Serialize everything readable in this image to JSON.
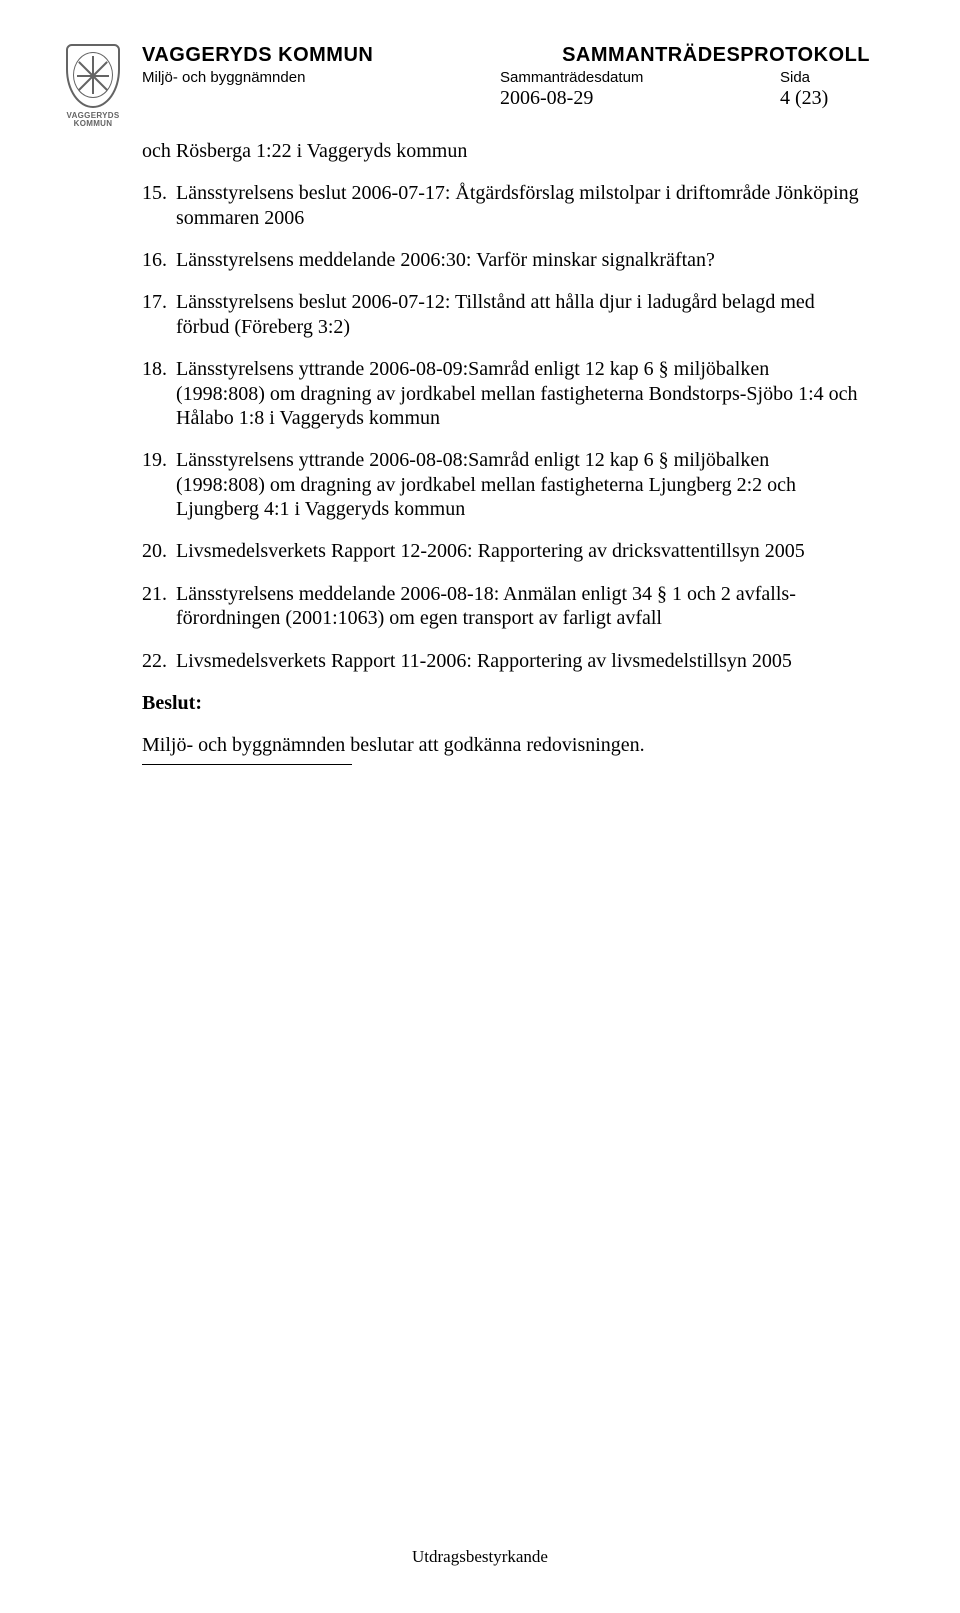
{
  "header": {
    "org": "VAGGERYDS KOMMUN",
    "doc_type": "SAMMANTRÄDESPROTOKOLL",
    "board": "Miljö- och byggnämnden",
    "date_label": "Sammanträdesdatum",
    "side_label": "Sida",
    "date": "2006-08-29",
    "page": "4 (23)",
    "crest_label_1": "VAGGERYDS",
    "crest_label_2": "KOMMUN"
  },
  "intro": "och Rösberga 1:22 i Vaggeryds kommun",
  "items": [
    {
      "n": "15.",
      "t": "Länsstyrelsens beslut 2006-07-17: Åtgärdsförslag milstolpar i driftområde Jönköping sommaren 2006"
    },
    {
      "n": "16.",
      "t": "Länsstyrelsens meddelande 2006:30: Varför minskar signalkräftan?"
    },
    {
      "n": "17.",
      "t": "Länsstyrelsens beslut 2006-07-12: Tillstånd att hålla djur i ladugård belagd med förbud (Föreberg 3:2)"
    },
    {
      "n": "18.",
      "t": "Länsstyrelsens yttrande 2006-08-09:Samråd enligt 12 kap 6 § miljöbalken (1998:808) om dragning av jordkabel mellan fastigheterna Bondstorps-Sjöbo 1:4 och Hålabo 1:8 i Vaggeryds kommun"
    },
    {
      "n": "19.",
      "t": "Länsstyrelsens yttrande 2006-08-08:Samråd enligt 12 kap 6 § miljöbalken (1998:808) om dragning av jordkabel mellan fastigheterna Ljungberg 2:2 och Ljungberg 4:1 i Vaggeryds kommun"
    },
    {
      "n": "20.",
      "t": "Livsmedelsverkets Rapport 12-2006: Rapportering av dricksvattentillsyn 2005"
    },
    {
      "n": "21.",
      "t": "Länsstyrelsens meddelande 2006-08-18: Anmälan enligt 34 § 1 och 2 avfalls­förordningen (2001:1063) om egen transport av farligt avfall"
    },
    {
      "n": "22.",
      "t": "Livsmedelsverkets Rapport 11-2006: Rapportering av livsmedelstillsyn 2005"
    }
  ],
  "beslut_label": "Beslut:",
  "beslut_text": "Miljö- och byggnämnden beslutar att godkänna redovisningen.",
  "footer": "Utdragsbestyrkande"
}
